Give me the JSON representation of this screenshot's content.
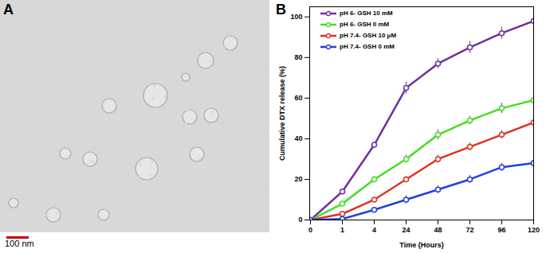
{
  "image": {
    "panel": "A",
    "scale_bar": "100 nm"
  },
  "chart_data": {
    "type": "line",
    "panel": "B",
    "x_label": "Time (Hours)",
    "y_label": "Cumulative DTX release (%)",
    "categories": [
      "0",
      "1",
      "4",
      "24",
      "48",
      "72",
      "96",
      "120"
    ],
    "ylim": [
      0,
      105
    ],
    "yticks": [
      0,
      20,
      40,
      60,
      80,
      100
    ],
    "legend": "top-left",
    "marker": "circle",
    "line_style": "solid",
    "series": [
      {
        "name": "pH 6- GSH 10 mM",
        "color": "#7030a0",
        "values": [
          0,
          14,
          37,
          65,
          77,
          85,
          92,
          98
        ],
        "errors": [
          0,
          1,
          1,
          3,
          2.5,
          3,
          3,
          2.5
        ]
      },
      {
        "name": "pH 6- GSH 0 mM",
        "color": "#44dd22",
        "values": [
          0,
          8,
          20,
          30,
          42,
          49,
          55,
          59
        ],
        "errors": [
          0,
          1,
          1.5,
          2,
          2.5,
          2,
          2.5,
          3
        ]
      },
      {
        "name": "pH 7.4- GSH 10 μM",
        "color": "#e03020",
        "values": [
          0,
          3,
          10,
          20,
          30,
          36,
          42,
          48
        ],
        "errors": [
          0,
          1,
          1,
          1.5,
          2,
          2,
          2,
          2
        ]
      },
      {
        "name": "pH 7.4- GSH 0 mM",
        "color": "#1f3fe0",
        "values": [
          0,
          0.5,
          5,
          10,
          15,
          20,
          26,
          28
        ],
        "errors": [
          0,
          0.5,
          1,
          2,
          2,
          2,
          2,
          3
        ]
      }
    ]
  }
}
